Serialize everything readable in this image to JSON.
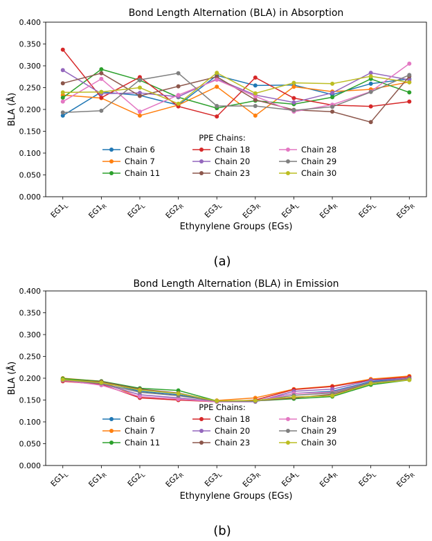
{
  "chart_data": [
    {
      "type": "line",
      "title": "Bond Length Alternation (BLA) in Absorption",
      "xlabel": "Ethynylene Groups (EGs)",
      "ylabel": "BLA (Å)",
      "ylim": [
        0,
        0.4
      ],
      "yticks": [
        "0.000",
        "0.050",
        "0.100",
        "0.150",
        "0.200",
        "0.250",
        "0.300",
        "0.350",
        "0.400"
      ],
      "categories": [
        {
          "base": "EG1",
          "sub": "L"
        },
        {
          "base": "EG1",
          "sub": "R"
        },
        {
          "base": "EG2",
          "sub": "L"
        },
        {
          "base": "EG2",
          "sub": "R"
        },
        {
          "base": "EG3",
          "sub": "L"
        },
        {
          "base": "EG3",
          "sub": "R"
        },
        {
          "base": "EG4",
          "sub": "L"
        },
        {
          "base": "EG4",
          "sub": "R"
        },
        {
          "base": "EG5",
          "sub": "L"
        },
        {
          "base": "EG5",
          "sub": "R"
        }
      ],
      "legend_title": "PPE Chains:",
      "legend_position": "bottom-center",
      "caption": "(a)",
      "series": [
        {
          "name": "Chain 6",
          "color": "#1f77b4",
          "values": [
            0.186,
            0.24,
            0.232,
            0.21,
            0.278,
            0.255,
            0.256,
            0.234,
            0.259,
            0.27
          ]
        },
        {
          "name": "Chain 7",
          "color": "#ff7f0e",
          "values": [
            0.233,
            0.226,
            0.186,
            0.21,
            0.252,
            0.186,
            0.252,
            0.241,
            0.246,
            0.263
          ]
        },
        {
          "name": "Chain 11",
          "color": "#2ca02c",
          "values": [
            0.227,
            0.292,
            0.267,
            0.228,
            0.203,
            0.22,
            0.212,
            0.228,
            0.27,
            0.239
          ]
        },
        {
          "name": "Chain 18",
          "color": "#d62728",
          "values": [
            0.337,
            0.227,
            0.274,
            0.207,
            0.184,
            0.273,
            0.226,
            0.21,
            0.207,
            0.218
          ]
        },
        {
          "name": "Chain 20",
          "color": "#9467bd",
          "values": [
            0.29,
            0.236,
            0.238,
            0.229,
            0.27,
            0.233,
            0.216,
            0.238,
            0.284,
            0.268
          ]
        },
        {
          "name": "Chain 23",
          "color": "#8c564b",
          "values": [
            0.26,
            0.283,
            0.231,
            0.253,
            0.275,
            0.222,
            0.199,
            0.195,
            0.171,
            0.276
          ]
        },
        {
          "name": "Chain 28",
          "color": "#e377c2",
          "values": [
            0.218,
            0.27,
            0.195,
            0.233,
            0.268,
            0.23,
            0.195,
            0.211,
            0.241,
            0.305
          ]
        },
        {
          "name": "Chain 29",
          "color": "#7f7f7f",
          "values": [
            0.193,
            0.197,
            0.268,
            0.283,
            0.208,
            0.208,
            0.198,
            0.206,
            0.24,
            0.279
          ]
        },
        {
          "name": "Chain 30",
          "color": "#bcbd22",
          "values": [
            0.239,
            0.24,
            0.25,
            0.213,
            0.284,
            0.237,
            0.261,
            0.259,
            0.276,
            0.262
          ]
        }
      ]
    },
    {
      "type": "line",
      "title": "Bond Length Alternation (BLA) in Emission",
      "xlabel": "Ethynylene Groups (EGs)",
      "ylabel": "BLA (Å)",
      "ylim": [
        0,
        0.4
      ],
      "yticks": [
        "0.000",
        "0.050",
        "0.100",
        "0.150",
        "0.200",
        "0.250",
        "0.300",
        "0.350",
        "0.400"
      ],
      "categories": [
        {
          "base": "EG1",
          "sub": "L"
        },
        {
          "base": "EG1",
          "sub": "R"
        },
        {
          "base": "EG2",
          "sub": "L"
        },
        {
          "base": "EG2",
          "sub": "R"
        },
        {
          "base": "EG3",
          "sub": "L"
        },
        {
          "base": "EG3",
          "sub": "R"
        },
        {
          "base": "EG4",
          "sub": "L"
        },
        {
          "base": "EG4",
          "sub": "R"
        },
        {
          "base": "EG5",
          "sub": "L"
        },
        {
          "base": "EG5",
          "sub": "R"
        }
      ],
      "legend_title": "PPE Chains:",
      "legend_position": "bottom-center",
      "caption": "(b)",
      "series": [
        {
          "name": "Chain 6",
          "color": "#1f77b4",
          "values": [
            0.198,
            0.192,
            0.17,
            0.162,
            0.148,
            0.148,
            0.165,
            0.17,
            0.192,
            0.2
          ]
        },
        {
          "name": "Chain 7",
          "color": "#ff7f0e",
          "values": [
            0.2,
            0.193,
            0.156,
            0.15,
            0.149,
            0.155,
            0.175,
            0.182,
            0.198,
            0.205
          ]
        },
        {
          "name": "Chain 11",
          "color": "#2ca02c",
          "values": [
            0.199,
            0.193,
            0.177,
            0.172,
            0.148,
            0.148,
            0.153,
            0.158,
            0.185,
            0.196
          ]
        },
        {
          "name": "Chain 18",
          "color": "#d62728",
          "values": [
            0.193,
            0.186,
            0.155,
            0.15,
            0.146,
            0.15,
            0.174,
            0.181,
            0.196,
            0.203
          ]
        },
        {
          "name": "Chain 20",
          "color": "#9467bd",
          "values": [
            0.195,
            0.188,
            0.162,
            0.155,
            0.146,
            0.146,
            0.17,
            0.175,
            0.195,
            0.2
          ]
        },
        {
          "name": "Chain 23",
          "color": "#8c564b",
          "values": [
            0.196,
            0.192,
            0.175,
            0.166,
            0.147,
            0.148,
            0.155,
            0.163,
            0.188,
            0.199
          ]
        },
        {
          "name": "Chain 28",
          "color": "#e377c2",
          "values": [
            0.195,
            0.184,
            0.158,
            0.152,
            0.146,
            0.147,
            0.165,
            0.168,
            0.19,
            0.198
          ]
        },
        {
          "name": "Chain 29",
          "color": "#7f7f7f",
          "values": [
            0.196,
            0.188,
            0.168,
            0.16,
            0.147,
            0.147,
            0.161,
            0.166,
            0.19,
            0.198
          ]
        },
        {
          "name": "Chain 30",
          "color": "#bcbd22",
          "values": [
            0.197,
            0.19,
            0.173,
            0.165,
            0.148,
            0.149,
            0.157,
            0.16,
            0.188,
            0.196
          ]
        }
      ]
    }
  ]
}
